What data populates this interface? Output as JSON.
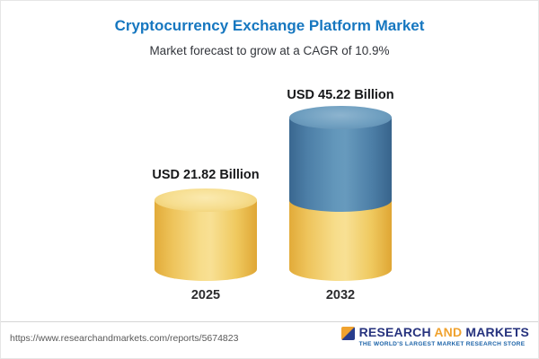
{
  "chart_data": {
    "type": "bar",
    "title": "Cryptocurrency Exchange Platform Market",
    "subtitle": "Market forecast to grow at a CAGR of 10.9%",
    "categories": [
      "2025",
      "2032"
    ],
    "values": [
      21.82,
      45.22
    ],
    "unit": "USD Billion",
    "cagr": "10.9%",
    "value_labels": [
      "USD 21.82 Billion",
      "USD 45.22 Billion"
    ],
    "legend_position": "none",
    "grid": false,
    "bar_style": "3d-cylinder",
    "colors": {
      "bar_2025": "#f2cd5e",
      "bar_2032_top": "#4d80a8",
      "bar_2032_bottom": "#f2cd5e"
    }
  },
  "header": {
    "title": "Cryptocurrency Exchange Platform Market",
    "subtitle": "Market forecast to grow at a CAGR of 10.9%",
    "title_color": "#1677c0"
  },
  "bars": [
    {
      "year": "2025",
      "label": "USD 21.82 Billion"
    },
    {
      "year": "2032",
      "label": "USD 45.22 Billion"
    }
  ],
  "footer": {
    "url": "https://www.researchandmarkets.com/reports/5674823",
    "logo": {
      "part1": "RESEARCH",
      "part2": "AND",
      "part3": "MARKETS",
      "tagline": "THE WORLD'S LARGEST MARKET RESEARCH STORE",
      "navy": "#27337e",
      "orange": "#f0a22e"
    }
  }
}
